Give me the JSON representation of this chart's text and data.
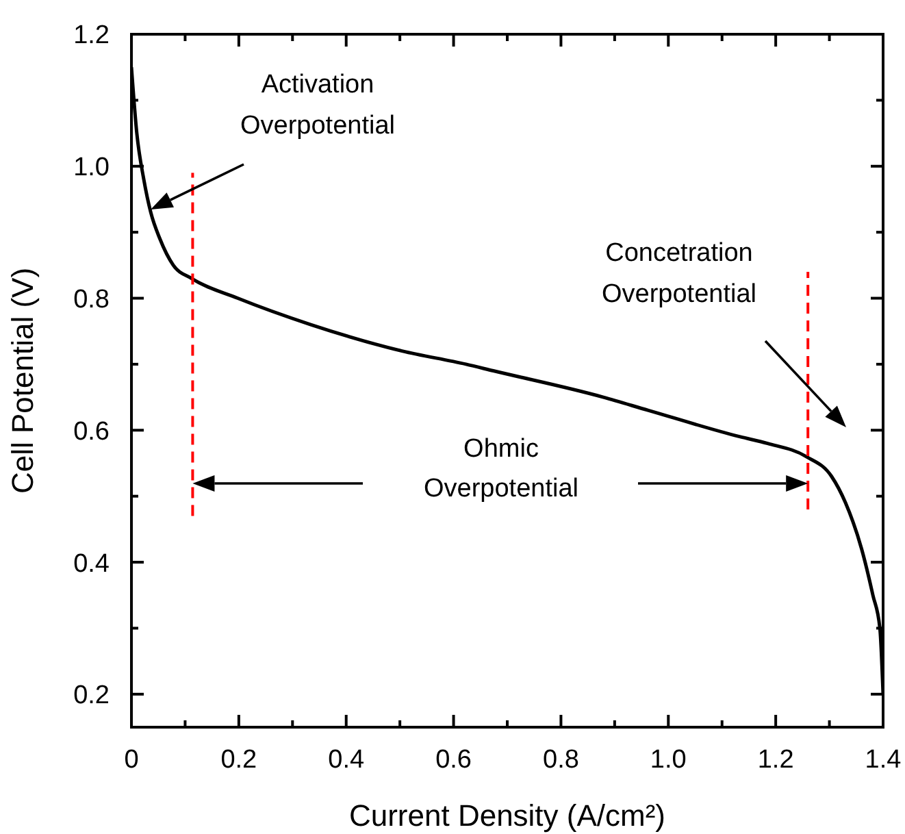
{
  "chart_data": {
    "type": "line",
    "xlabel": "Current Density (A/cm²)",
    "ylabel": "Cell Potential (V)",
    "xlim": [
      0,
      1.4
    ],
    "ylim": [
      0.15,
      1.2
    ],
    "xticks": [
      0,
      {
        "value": 0.1,
        "label": null
      },
      0.2,
      {
        "value": 0.3,
        "label": null
      },
      0.4,
      {
        "value": 0.5,
        "label": null
      },
      0.6,
      {
        "value": 0.7,
        "label": null
      },
      0.8,
      {
        "value": 0.9,
        "label": null
      },
      {
        "value": 1,
        "label": "1.0"
      },
      {
        "value": 1.1,
        "label": null
      },
      1.2,
      {
        "value": 1.3,
        "label": null
      },
      1.4
    ],
    "yticks": [
      0.2,
      {
        "value": 0.3,
        "label": null
      },
      0.4,
      {
        "value": 0.5,
        "label": null
      },
      0.6,
      {
        "value": 0.7,
        "label": null
      },
      0.8,
      {
        "value": 0.9,
        "label": null
      },
      {
        "value": 1,
        "label": "1.0"
      },
      {
        "value": 1.1,
        "label": null
      },
      1.2
    ],
    "marker": "none",
    "series": [
      {
        "color": "#000000",
        "line_style": "solid",
        "x": [
          0,
          0.01,
          0.023,
          0.036,
          0.053,
          0.078,
          0.112,
          0.198,
          0.334,
          0.504,
          0.623,
          0.674,
          0.879,
          0.963,
          1.134,
          1.185,
          1.257,
          1.304,
          1.33,
          1.36,
          1.381,
          1.394,
          1.4
        ],
        "values": [
          1.15,
          1.05,
          0.98,
          0.93,
          0.89,
          0.85,
          0.83,
          0.8,
          0.76,
          0.72,
          0.7,
          0.69,
          0.65,
          0.63,
          0.59,
          0.58,
          0.56,
          0.53,
          0.49,
          0.42,
          0.35,
          0.3,
          0.2
        ]
      },
      {
        "color": "#ff0000",
        "line_style": "dashed",
        "x": [
          0.114,
          0.114
        ],
        "values": [
          0.47,
          0.99
        ]
      },
      {
        "color": "#ff0000",
        "line_style": "dashed",
        "x": [
          1.26,
          1.26
        ],
        "values": [
          0.48,
          0.84
        ]
      }
    ],
    "annotations": [
      "Activation\nOverpotential",
      "Ohmic\nOverpotential",
      "Concetration\nOverpotential"
    ]
  }
}
